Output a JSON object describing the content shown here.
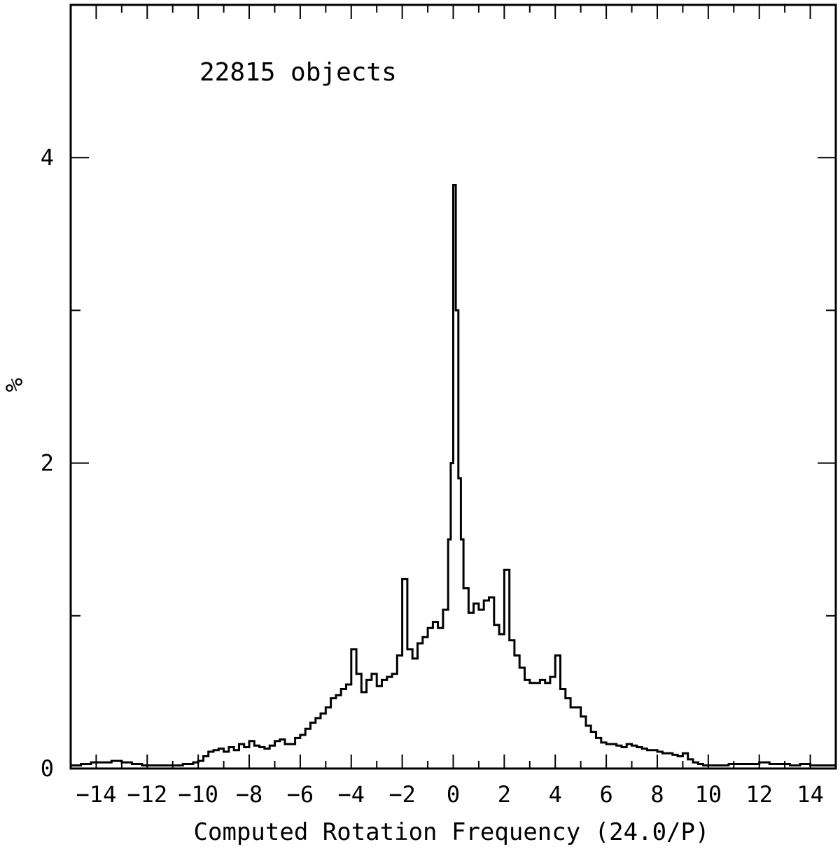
{
  "chart_data": {
    "type": "histogram",
    "title": "",
    "annotation": "22815 objects",
    "xlabel": "Computed Rotation Frequency (24.0/P)",
    "ylabel": "%",
    "xlim": [
      -15,
      15
    ],
    "ylim": [
      0,
      5
    ],
    "x_ticks": [
      -14,
      -12,
      -10,
      -8,
      -6,
      -4,
      -2,
      0,
      2,
      4,
      6,
      8,
      10,
      12,
      14
    ],
    "x_tick_labels": [
      "−14",
      "−12",
      "−10",
      "−8",
      "−6",
      "−4",
      "−2",
      "0",
      "2",
      "4",
      "6",
      "8",
      "10",
      "12",
      "14"
    ],
    "y_ticks": [
      0,
      2,
      4
    ],
    "y_tick_labels": [
      "0",
      "2",
      "4"
    ],
    "bin_width": 0.2,
    "bins": [
      [
        -15.0,
        0.02
      ],
      [
        -14.6,
        0.03
      ],
      [
        -14.2,
        0.04
      ],
      [
        -13.8,
        0.04
      ],
      [
        -13.4,
        0.05
      ],
      [
        -13.0,
        0.04
      ],
      [
        -12.6,
        0.03
      ],
      [
        -12.2,
        0.02
      ],
      [
        -11.8,
        0.02
      ],
      [
        -11.4,
        0.02
      ],
      [
        -11.0,
        0.02
      ],
      [
        -10.6,
        0.03
      ],
      [
        -10.2,
        0.04
      ],
      [
        -10.0,
        0.05
      ],
      [
        -9.8,
        0.08
      ],
      [
        -9.6,
        0.11
      ],
      [
        -9.4,
        0.12
      ],
      [
        -9.2,
        0.13
      ],
      [
        -9.0,
        0.11
      ],
      [
        -8.8,
        0.14
      ],
      [
        -8.6,
        0.12
      ],
      [
        -8.4,
        0.16
      ],
      [
        -8.2,
        0.14
      ],
      [
        -8.0,
        0.18
      ],
      [
        -7.8,
        0.15
      ],
      [
        -7.6,
        0.14
      ],
      [
        -7.4,
        0.13
      ],
      [
        -7.2,
        0.15
      ],
      [
        -7.0,
        0.18
      ],
      [
        -6.8,
        0.19
      ],
      [
        -6.6,
        0.16
      ],
      [
        -6.4,
        0.16
      ],
      [
        -6.2,
        0.2
      ],
      [
        -6.0,
        0.22
      ],
      [
        -5.8,
        0.26
      ],
      [
        -5.6,
        0.3
      ],
      [
        -5.4,
        0.33
      ],
      [
        -5.2,
        0.36
      ],
      [
        -5.0,
        0.4
      ],
      [
        -4.8,
        0.46
      ],
      [
        -4.6,
        0.48
      ],
      [
        -4.4,
        0.52
      ],
      [
        -4.2,
        0.55
      ],
      [
        -4.0,
        0.78
      ],
      [
        -3.8,
        0.62
      ],
      [
        -3.6,
        0.5
      ],
      [
        -3.4,
        0.58
      ],
      [
        -3.2,
        0.62
      ],
      [
        -3.0,
        0.54
      ],
      [
        -2.8,
        0.58
      ],
      [
        -2.6,
        0.6
      ],
      [
        -2.4,
        0.62
      ],
      [
        -2.2,
        0.74
      ],
      [
        -2.0,
        1.24
      ],
      [
        -1.8,
        0.78
      ],
      [
        -1.6,
        0.72
      ],
      [
        -1.4,
        0.82
      ],
      [
        -1.2,
        0.86
      ],
      [
        -1.0,
        0.92
      ],
      [
        -0.8,
        0.96
      ],
      [
        -0.6,
        0.92
      ],
      [
        -0.4,
        1.04
      ],
      [
        -0.2,
        1.5
      ],
      [
        -0.1,
        2.0
      ],
      [
        0.0,
        3.82
      ],
      [
        0.1,
        3.0
      ],
      [
        0.2,
        1.9
      ],
      [
        0.3,
        1.5
      ],
      [
        0.4,
        1.18
      ],
      [
        0.6,
        1.02
      ],
      [
        0.8,
        1.08
      ],
      [
        1.0,
        1.04
      ],
      [
        1.2,
        1.1
      ],
      [
        1.4,
        1.12
      ],
      [
        1.6,
        0.94
      ],
      [
        1.8,
        0.88
      ],
      [
        2.0,
        1.3
      ],
      [
        2.2,
        0.84
      ],
      [
        2.4,
        0.74
      ],
      [
        2.6,
        0.66
      ],
      [
        2.8,
        0.58
      ],
      [
        3.0,
        0.56
      ],
      [
        3.2,
        0.56
      ],
      [
        3.4,
        0.58
      ],
      [
        3.6,
        0.56
      ],
      [
        3.8,
        0.6
      ],
      [
        4.0,
        0.74
      ],
      [
        4.2,
        0.52
      ],
      [
        4.4,
        0.46
      ],
      [
        4.6,
        0.4
      ],
      [
        4.8,
        0.4
      ],
      [
        5.0,
        0.34
      ],
      [
        5.2,
        0.28
      ],
      [
        5.4,
        0.24
      ],
      [
        5.6,
        0.2
      ],
      [
        5.8,
        0.17
      ],
      [
        6.0,
        0.16
      ],
      [
        6.2,
        0.16
      ],
      [
        6.4,
        0.15
      ],
      [
        6.6,
        0.14
      ],
      [
        6.8,
        0.16
      ],
      [
        7.0,
        0.15
      ],
      [
        7.2,
        0.14
      ],
      [
        7.4,
        0.13
      ],
      [
        7.6,
        0.12
      ],
      [
        7.8,
        0.12
      ],
      [
        8.0,
        0.11
      ],
      [
        8.2,
        0.1
      ],
      [
        8.4,
        0.1
      ],
      [
        8.6,
        0.09
      ],
      [
        8.8,
        0.08
      ],
      [
        9.0,
        0.1
      ],
      [
        9.2,
        0.06
      ],
      [
        9.4,
        0.04
      ],
      [
        9.6,
        0.03
      ],
      [
        9.8,
        0.02
      ],
      [
        10.0,
        0.02
      ],
      [
        10.4,
        0.02
      ],
      [
        10.8,
        0.03
      ],
      [
        11.2,
        0.03
      ],
      [
        11.6,
        0.03
      ],
      [
        12.0,
        0.04
      ],
      [
        12.4,
        0.03
      ],
      [
        12.8,
        0.03
      ],
      [
        13.2,
        0.02
      ],
      [
        13.6,
        0.03
      ],
      [
        14.0,
        0.02
      ],
      [
        14.4,
        0.02
      ],
      [
        14.8,
        0.02
      ]
    ]
  }
}
